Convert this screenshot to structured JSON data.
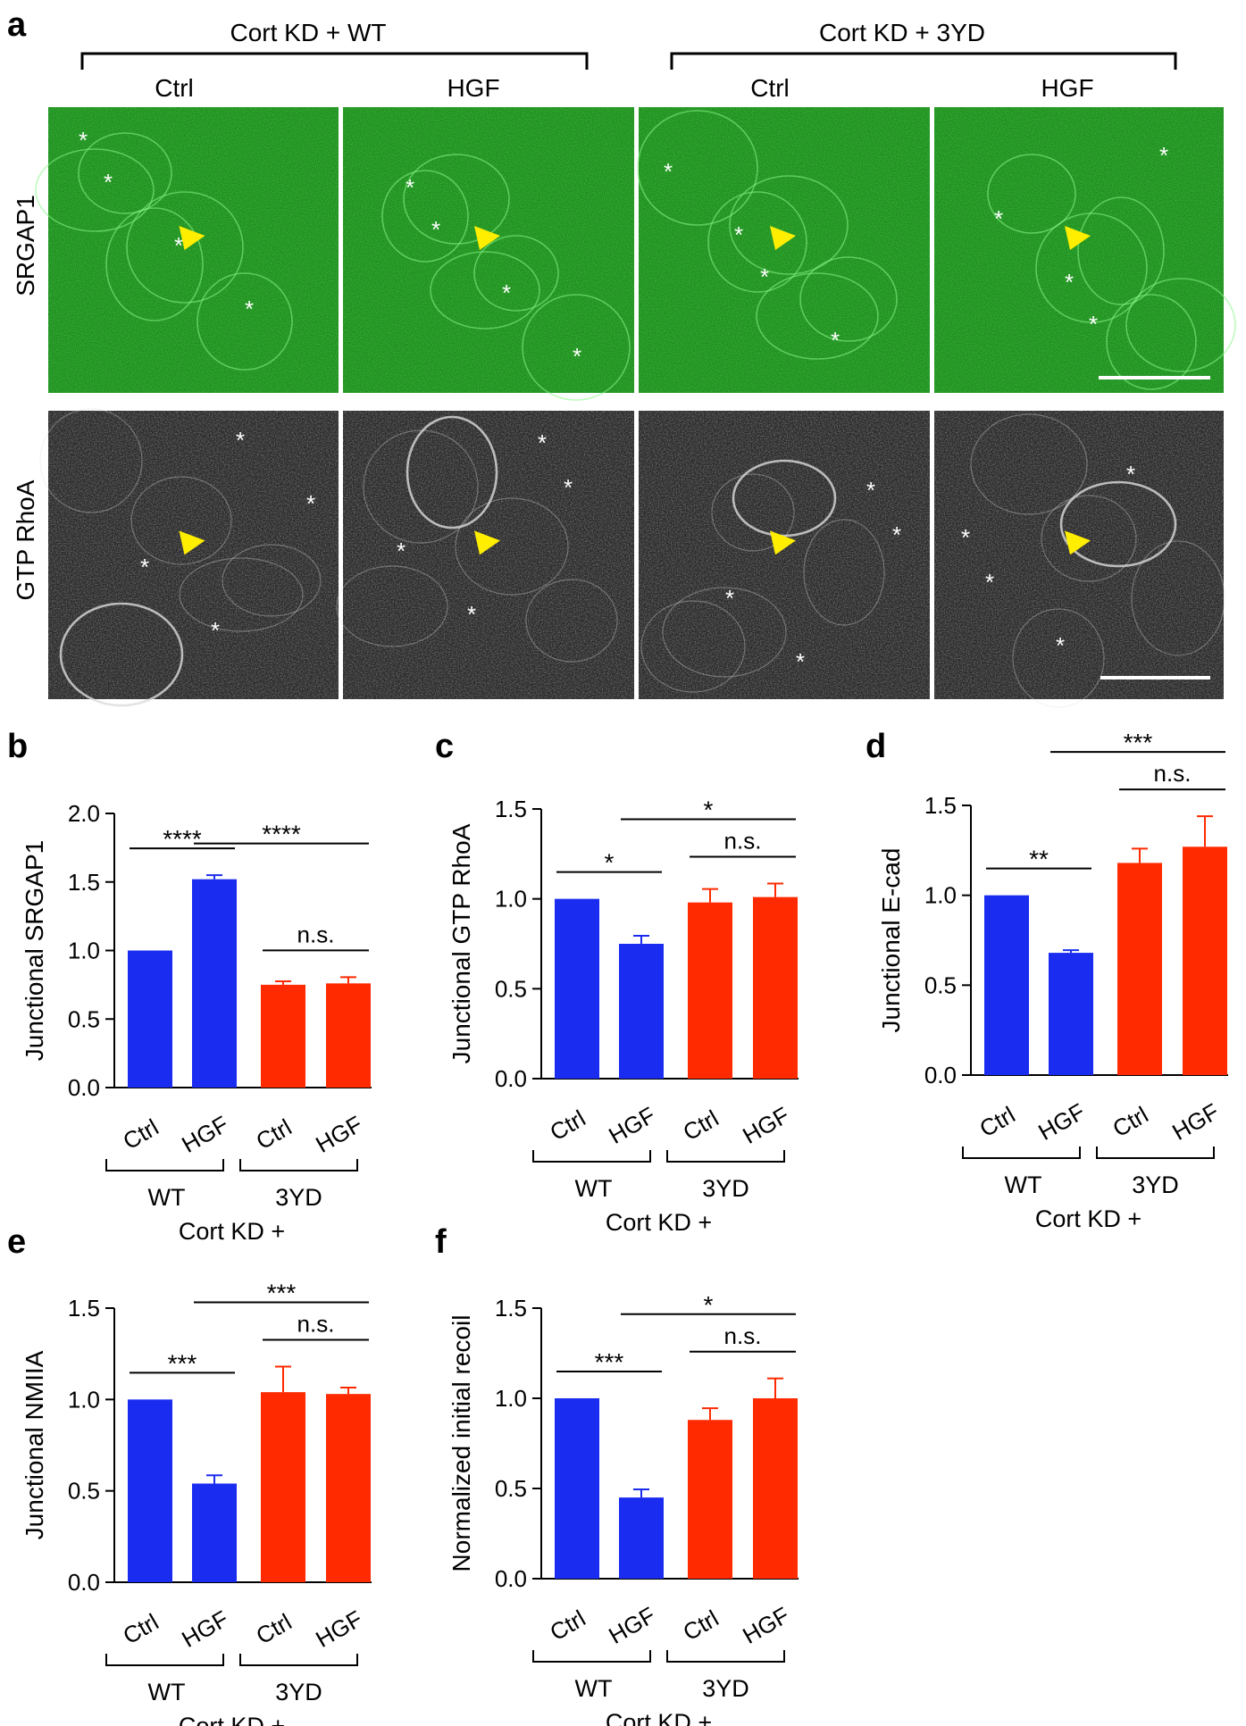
{
  "figure": {
    "panel_a": {
      "letter": "a",
      "groups": [
        "Cort KD + WT",
        "Cort KD + 3YD"
      ],
      "columns": [
        "Ctrl",
        "HGF",
        "Ctrl",
        "HGF"
      ],
      "rows": [
        "SRGAP1",
        "GTP RhoA"
      ],
      "colors": {
        "green_channel": "#1f8a1f",
        "gray_channel": "#2a2a2a",
        "arrowhead": "#ffee00",
        "marker": "#ffffff"
      }
    }
  },
  "colors": {
    "wt": "#1a2cf0",
    "yd3": "#ff2a00"
  },
  "chart_data": [
    {
      "panel": "b",
      "type": "bar",
      "ylabel": "Junctional SRGAP1",
      "ylim": [
        0,
        2.0
      ],
      "ticks": [
        0.0,
        0.5,
        1.0,
        1.5,
        2.0
      ],
      "tick_labels": [
        "0.0",
        "0.5",
        "1.0",
        "1.5",
        "2.0"
      ],
      "categories": [
        "Ctrl",
        "HGF",
        "Ctrl",
        "HGF"
      ],
      "values": [
        1.0,
        1.52,
        0.75,
        0.76
      ],
      "errors": [
        0,
        0.03,
        0.025,
        0.045
      ],
      "groups": [
        "WT",
        "3YD"
      ],
      "xlabel": "Cort KD +",
      "significance": [
        {
          "from": 0,
          "to": 1,
          "label": "****"
        },
        {
          "from": 1,
          "to": 3,
          "label": "****"
        },
        {
          "from": 2,
          "to": 3,
          "label": "n.s."
        }
      ]
    },
    {
      "panel": "c",
      "type": "bar",
      "ylabel": "Junctional GTP RhoA",
      "ylim": [
        0,
        1.5
      ],
      "ticks": [
        0.0,
        0.5,
        1.0,
        1.5
      ],
      "tick_labels": [
        "0.0",
        "0.5",
        "1.0",
        "1.5"
      ],
      "categories": [
        "Ctrl",
        "HGF",
        "Ctrl",
        "HGF"
      ],
      "values": [
        1.0,
        0.75,
        0.98,
        1.01
      ],
      "errors": [
        0,
        0.045,
        0.075,
        0.075
      ],
      "groups": [
        "WT",
        "3YD"
      ],
      "xlabel": "Cort KD +",
      "significance": [
        {
          "from": 0,
          "to": 1,
          "label": "*"
        },
        {
          "from": 1,
          "to": 3,
          "label": "*"
        },
        {
          "from": 2,
          "to": 3,
          "label": "n.s."
        }
      ]
    },
    {
      "panel": "d",
      "type": "bar",
      "ylabel": "Junctional E-cad",
      "ylim": [
        0,
        1.5
      ],
      "ticks": [
        0.0,
        0.5,
        1.0,
        1.5
      ],
      "tick_labels": [
        "0.0",
        "0.5",
        "1.0",
        "1.5"
      ],
      "categories": [
        "Ctrl",
        "HGF",
        "Ctrl",
        "HGF"
      ],
      "values": [
        1.0,
        0.68,
        1.18,
        1.27
      ],
      "errors": [
        0,
        0.015,
        0.08,
        0.17
      ],
      "groups": [
        "WT",
        "3YD"
      ],
      "xlabel": "Cort KD +",
      "significance": [
        {
          "from": 0,
          "to": 1,
          "label": "**"
        },
        {
          "from": 1,
          "to": 3,
          "label": "***"
        },
        {
          "from": 2,
          "to": 3,
          "label": "n.s."
        }
      ]
    },
    {
      "panel": "e",
      "type": "bar",
      "ylabel": "Junctional  NMIIA",
      "ylim": [
        0,
        1.5
      ],
      "ticks": [
        0.0,
        0.5,
        1.0,
        1.5
      ],
      "tick_labels": [
        "0.0",
        "0.5",
        "1.0",
        "1.5"
      ],
      "categories": [
        "Ctrl",
        "HGF",
        "Ctrl",
        "HGF"
      ],
      "values": [
        1.0,
        0.54,
        1.04,
        1.03
      ],
      "errors": [
        0,
        0.045,
        0.14,
        0.035
      ],
      "groups": [
        "WT",
        "3YD"
      ],
      "xlabel": "Cort KD +",
      "significance": [
        {
          "from": 0,
          "to": 1,
          "label": "***"
        },
        {
          "from": 1,
          "to": 3,
          "label": "***"
        },
        {
          "from": 2,
          "to": 3,
          "label": "n.s."
        }
      ]
    },
    {
      "panel": "f",
      "type": "bar",
      "ylabel": "Normalized initial recoil",
      "ylim": [
        0,
        1.5
      ],
      "ticks": [
        0.0,
        0.5,
        1.0,
        1.5
      ],
      "tick_labels": [
        "0.0",
        "0.5",
        "1.0",
        "1.5"
      ],
      "categories": [
        "Ctrl",
        "HGF",
        "Ctrl",
        "HGF"
      ],
      "values": [
        1.0,
        0.45,
        0.88,
        1.0
      ],
      "errors": [
        0,
        0.045,
        0.065,
        0.11
      ],
      "groups": [
        "WT",
        "3YD"
      ],
      "xlabel": "Cort KD +",
      "significance": [
        {
          "from": 0,
          "to": 1,
          "label": "***"
        },
        {
          "from": 1,
          "to": 3,
          "label": "*"
        },
        {
          "from": 2,
          "to": 3,
          "label": "n.s."
        }
      ]
    }
  ]
}
